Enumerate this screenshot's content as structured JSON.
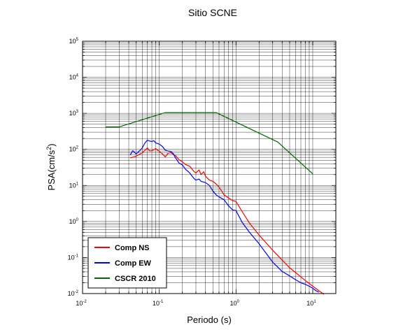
{
  "chart_data": {
    "type": "line",
    "title": "Sitio SCNE",
    "xlabel": "Periodo (s)",
    "ylabel_base": "PSA(cm/s",
    "ylabel_exp": "2",
    "ylabel_close": ")",
    "x_scale": "log",
    "y_scale": "log",
    "xlim": [
      0.01,
      20
    ],
    "ylim": [
      0.01,
      100000
    ],
    "grid": true,
    "legend_position": "bottom-left",
    "x_ticks": [
      {
        "value": 0.01,
        "base": "10",
        "exp": "-2"
      },
      {
        "value": 0.1,
        "base": "10",
        "exp": "-1"
      },
      {
        "value": 1,
        "base": "10",
        "exp": "0"
      },
      {
        "value": 10,
        "base": "10",
        "exp": "1"
      }
    ],
    "y_ticks": [
      {
        "value": 0.01,
        "base": "10",
        "exp": "-2"
      },
      {
        "value": 0.1,
        "base": "10",
        "exp": "-1"
      },
      {
        "value": 1,
        "base": "10",
        "exp": "0"
      },
      {
        "value": 10,
        "base": "10",
        "exp": "1"
      },
      {
        "value": 100,
        "base": "10",
        "exp": "2"
      },
      {
        "value": 1000,
        "base": "10",
        "exp": "3"
      },
      {
        "value": 10000,
        "base": "10",
        "exp": "4"
      },
      {
        "value": 100000,
        "base": "10",
        "exp": "5"
      }
    ],
    "series": [
      {
        "name": "Comp NS",
        "color": "#ff0000",
        "x": [
          0.042,
          0.05,
          0.06,
          0.07,
          0.075,
          0.08,
          0.09,
          0.1,
          0.11,
          0.12,
          0.13,
          0.14,
          0.15,
          0.16,
          0.18,
          0.2,
          0.22,
          0.25,
          0.28,
          0.3,
          0.33,
          0.35,
          0.38,
          0.4,
          0.45,
          0.5,
          0.55,
          0.6,
          0.7,
          0.8,
          0.9,
          1.0,
          1.2,
          1.5,
          2.0,
          3.0,
          4.0,
          5.0,
          6.0,
          7.0,
          8.0,
          9.0,
          10.0,
          12.0,
          14.0
        ],
        "y": [
          58,
          65,
          80,
          110,
          90,
          92,
          105,
          88,
          75,
          62,
          78,
          82,
          74,
          70,
          52,
          45,
          38,
          34,
          25,
          22,
          27,
          20,
          24,
          18,
          14,
          13,
          11,
          9,
          5.5,
          4.5,
          3.8,
          3.6,
          1.9,
          0.9,
          0.42,
          0.16,
          0.085,
          0.052,
          0.038,
          0.029,
          0.023,
          0.019,
          0.016,
          0.012,
          0.0095
        ]
      },
      {
        "name": "Comp EW",
        "color": "#0000ff",
        "x": [
          0.042,
          0.045,
          0.05,
          0.055,
          0.06,
          0.065,
          0.07,
          0.075,
          0.08,
          0.085,
          0.09,
          0.1,
          0.11,
          0.12,
          0.13,
          0.14,
          0.15,
          0.16,
          0.18,
          0.2,
          0.22,
          0.25,
          0.28,
          0.3,
          0.33,
          0.35,
          0.4,
          0.45,
          0.5,
          0.55,
          0.6,
          0.7,
          0.8,
          0.9,
          1.0,
          1.2,
          1.5,
          2.0,
          3.0,
          4.0,
          5.0,
          6.0,
          7.0,
          8.0,
          9.0,
          10.0,
          11.0,
          12.0
        ],
        "y": [
          70,
          92,
          75,
          90,
          110,
          150,
          180,
          170,
          165,
          175,
          150,
          140,
          120,
          95,
          90,
          88,
          80,
          62,
          42,
          37,
          28,
          22,
          16,
          14,
          15,
          13,
          12,
          10,
          7,
          5.5,
          4.8,
          4,
          2.7,
          2.1,
          2.0,
          0.95,
          0.5,
          0.24,
          0.075,
          0.041,
          0.031,
          0.024,
          0.02,
          0.018,
          0.016,
          0.014,
          0.012,
          0.011
        ]
      },
      {
        "name": "CSCR 2010",
        "color": "#006600",
        "x": [
          0.02,
          0.03,
          0.12,
          0.55,
          3.5,
          10.0
        ],
        "y": [
          420,
          420,
          1050,
          1050,
          160,
          21
        ]
      }
    ]
  }
}
